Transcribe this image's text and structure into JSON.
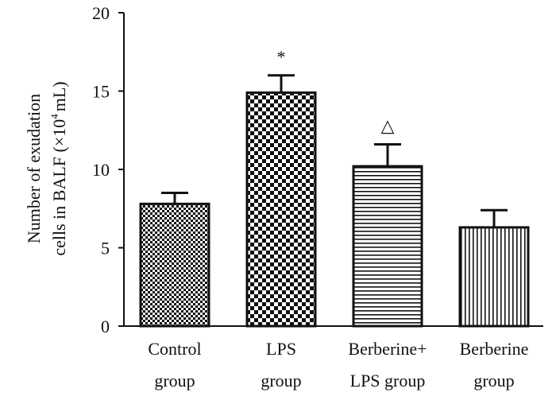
{
  "chart_data": {
    "type": "bar",
    "title": "",
    "xlabel": "",
    "ylabel_line1": "Number of exudation",
    "ylabel_line2_prefix": "cells in BALF (×10",
    "ylabel_line2_sup": "4",
    "ylabel_line2_suffix": "mL)",
    "ylim": [
      0,
      20
    ],
    "yticks": [
      "0",
      "5",
      "10",
      "15",
      "20"
    ],
    "categories": [
      {
        "line1": "Control",
        "line2": "group"
      },
      {
        "line1": "LPS",
        "line2": "group"
      },
      {
        "line1": "Berberine+",
        "line2": "LPS  group"
      },
      {
        "line1": "Berberine",
        "line2": "group"
      }
    ],
    "values": [
      7.8,
      14.9,
      10.2,
      6.3
    ],
    "errors": [
      0.7,
      1.1,
      1.4,
      1.1
    ],
    "annotations": [
      "",
      "*",
      "△",
      ""
    ],
    "patterns": [
      "fine-check",
      "coarse-check",
      "horizontal-lines",
      "vertical-lines"
    ],
    "bar_color": "#111111",
    "background": "#ffffff"
  }
}
